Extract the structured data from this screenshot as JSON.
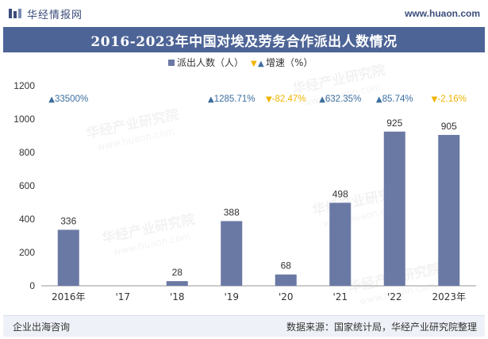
{
  "header": {
    "brand_name": "华经情报网",
    "site_url": "www.huaon.com",
    "logo_icon": "huajing-logo-icon"
  },
  "title": "2016-2023年中国对埃及劳务合作派出人数情况",
  "footer": {
    "left": "企业出海咨询",
    "right": "数据来源：国家统计局，华经产业研究院整理"
  },
  "watermark": {
    "cn": "华经产业研究院",
    "en": "www.huaon.com"
  },
  "colors": {
    "bar": "#6a79a4",
    "banner": "#4d6496",
    "up": "#3c6fa0",
    "down": "#f0b400",
    "value_label": "#333333"
  },
  "chart_data": {
    "type": "bar",
    "categories": [
      "2016年",
      "'17",
      "'18",
      "'19",
      "'20",
      "'21",
      "'22",
      "2023年"
    ],
    "series": [
      {
        "name": "派出人数（人）",
        "values": [
          336,
          null,
          28,
          388,
          68,
          498,
          925,
          905
        ],
        "value_labels": [
          "336",
          "",
          "28",
          "388",
          "68",
          "498",
          "925",
          "905"
        ]
      },
      {
        "name": "增速（%）",
        "type": "annotation",
        "labels": [
          "33500%",
          "",
          "",
          "1285.71%",
          "-82.47%",
          "632.35%",
          "85.74%",
          "-2.16%"
        ],
        "direction": [
          "up",
          "",
          "",
          "up",
          "down",
          "up",
          "up",
          "down"
        ]
      }
    ],
    "ylim": [
      0,
      1200
    ],
    "yticks": [
      0,
      200,
      400,
      600,
      800,
      1000,
      1200
    ],
    "grid": false,
    "legend_position": "top-center",
    "legend_markers": {
      "count": "■",
      "growth": "▼▲"
    }
  }
}
